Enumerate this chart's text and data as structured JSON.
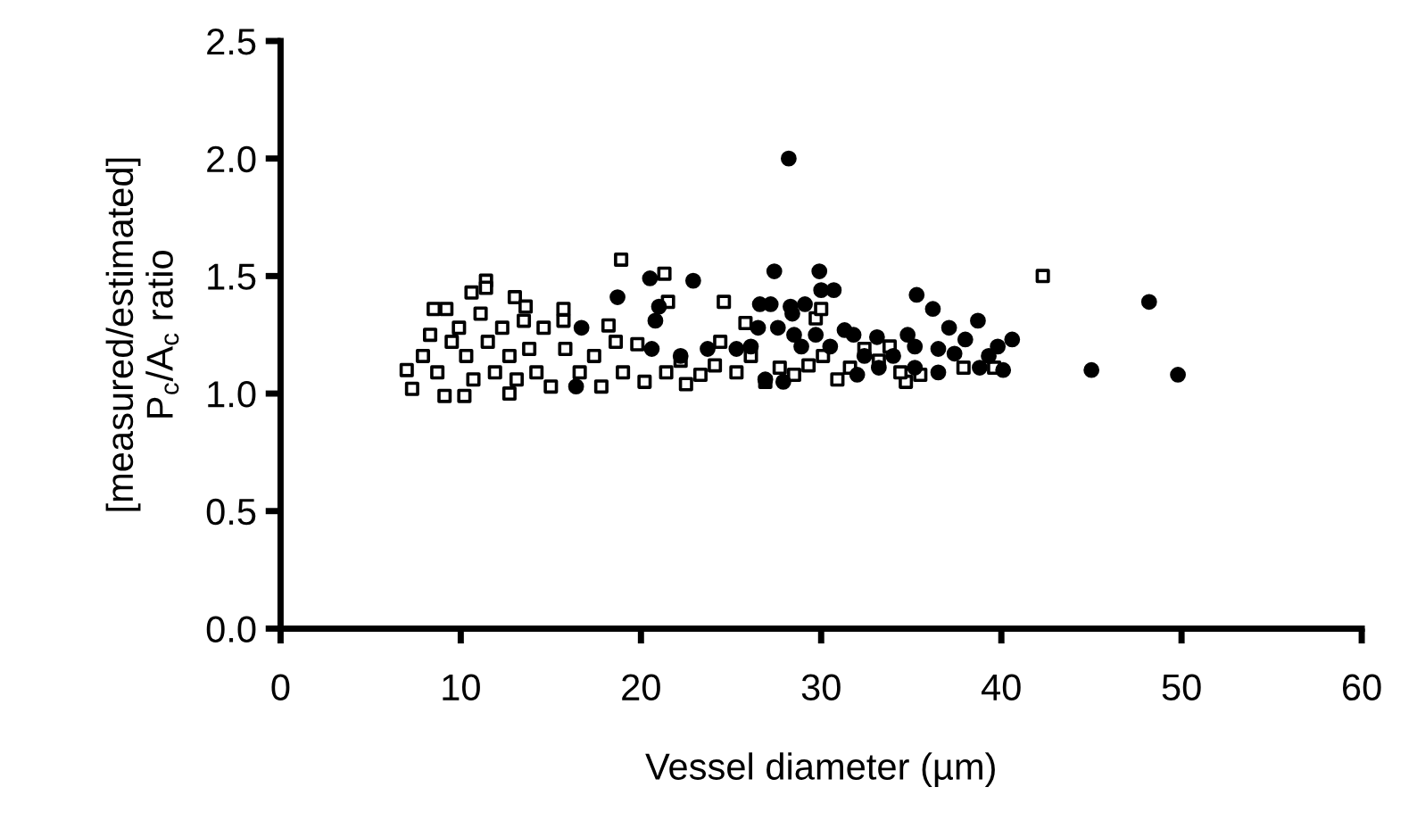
{
  "chart_data": {
    "type": "scatter",
    "xlabel": "Vessel diameter (µm)",
    "ylabel": "[measured/estimated]\nP$_{c}$/A$_{c}$ ratio",
    "xlim": [
      0,
      60
    ],
    "xticks": [
      0,
      10,
      20,
      30,
      40,
      50,
      60
    ],
    "ylim": [
      0,
      2.5
    ],
    "yticks": [
      {
        "value": 0,
        "label": "0.0"
      },
      {
        "value": 0.5,
        "label": "0.5"
      },
      {
        "value": 1,
        "label": "1.0"
      },
      {
        "value": 1.5,
        "label": "1.5"
      },
      {
        "value": 2,
        "label": "2.0"
      },
      {
        "value": 2.5,
        "label": "2.5"
      }
    ],
    "grid": false,
    "series": [
      {
        "color": "#000000",
        "marker": "square",
        "x": [
          18.9,
          21.3,
          21.5,
          24.6,
          42.3,
          25.8,
          29.7,
          30.0,
          18.2,
          15.7,
          15.7,
          11.4,
          11.4,
          10.6,
          13.0,
          8.5,
          9.2,
          13.6,
          7.0,
          7.3,
          9.1,
          10.2,
          12.7,
          37.9,
          34.7,
          35.5,
          39.6,
          24.4,
          19.8,
          22.5,
          26.9,
          30.9,
          32.4,
          33.8,
          7.9,
          8.3,
          8.7,
          9.5,
          9.9,
          10.3,
          10.7,
          11.1,
          11.5,
          11.9,
          12.3,
          12.7,
          13.1,
          13.5,
          13.8,
          14.2,
          14.6,
          15.0,
          15.8,
          16.6,
          17.4,
          17.8,
          18.6,
          19.0,
          20.2,
          21.4,
          22.2,
          23.3,
          24.1,
          25.3,
          26.1,
          27.7,
          28.5,
          29.3,
          30.1,
          31.6,
          33.2,
          34.4
        ],
        "values": [
          1.57,
          1.51,
          1.39,
          1.39,
          1.5,
          1.3,
          1.32,
          1.36,
          1.29,
          1.36,
          1.31,
          1.48,
          1.45,
          1.43,
          1.41,
          1.36,
          1.36,
          1.37,
          1.1,
          1.02,
          0.99,
          0.99,
          1.0,
          1.11,
          1.05,
          1.08,
          1.11,
          1.22,
          1.21,
          1.04,
          1.05,
          1.06,
          1.19,
          1.2,
          1.16,
          1.25,
          1.09,
          1.22,
          1.28,
          1.16,
          1.06,
          1.34,
          1.22,
          1.09,
          1.28,
          1.16,
          1.06,
          1.31,
          1.19,
          1.09,
          1.28,
          1.03,
          1.19,
          1.09,
          1.16,
          1.03,
          1.22,
          1.09,
          1.05,
          1.09,
          1.14,
          1.08,
          1.12,
          1.09,
          1.16,
          1.11,
          1.08,
          1.12,
          1.16,
          1.11,
          1.14,
          1.09
        ]
      },
      {
        "color": "#000000",
        "marker": "circle",
        "x": [
          28.2,
          27.4,
          29.9,
          20.5,
          22.9,
          18.7,
          21.0,
          20.8,
          35.3,
          36.2,
          37.1,
          38.0,
          38.7,
          40.6,
          39.8,
          48.2,
          45.0,
          49.8,
          26.6,
          27.2,
          28.3,
          29.1,
          30.0,
          30.7,
          26.5,
          27.6,
          28.4,
          28.5,
          31.3,
          31.8,
          33.1,
          34.8,
          36.5,
          37.4,
          39.3,
          40.1,
          38.8,
          36.5,
          16.7,
          27.9,
          23.7,
          25.3,
          26.1,
          28.9,
          29.7,
          30.5,
          32.4,
          34.0,
          35.2,
          20.6,
          22.2,
          16.4,
          26.9,
          32.0,
          33.2,
          35.2
        ],
        "values": [
          2.0,
          1.52,
          1.52,
          1.49,
          1.48,
          1.41,
          1.37,
          1.31,
          1.42,
          1.36,
          1.28,
          1.23,
          1.31,
          1.23,
          1.2,
          1.39,
          1.1,
          1.08,
          1.38,
          1.38,
          1.37,
          1.38,
          1.44,
          1.44,
          1.28,
          1.28,
          1.34,
          1.25,
          1.27,
          1.25,
          1.24,
          1.25,
          1.19,
          1.17,
          1.16,
          1.1,
          1.11,
          1.09,
          1.28,
          1.05,
          1.19,
          1.19,
          1.2,
          1.2,
          1.25,
          1.2,
          1.16,
          1.16,
          1.2,
          1.19,
          1.16,
          1.03,
          1.06,
          1.08,
          1.11,
          1.11
        ]
      }
    ]
  }
}
